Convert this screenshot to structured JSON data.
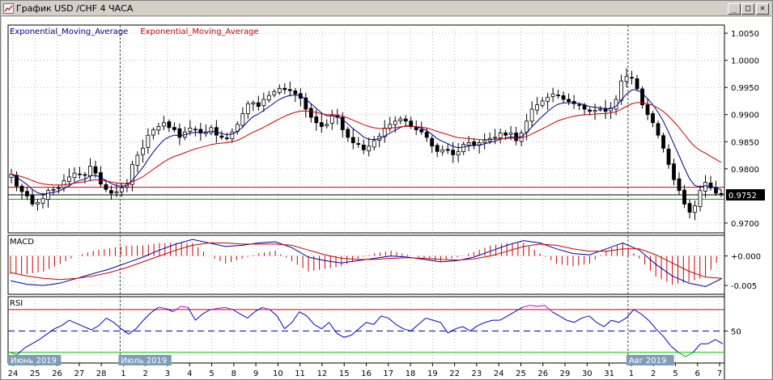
{
  "window": {
    "title": "График USD /CHF  4 ЧАСА",
    "minimize_glyph": "_",
    "maximize_glyph": "□",
    "close_glyph": "✕"
  },
  "colors": {
    "ema_fast": "#00008b",
    "ema_slow": "#cc0000",
    "support_line": "#00a000",
    "resistance_line": "#cc0000",
    "price_tag_bg": "#000000",
    "rsi_line": "#0000cc",
    "rsi_upper": "#cc0000",
    "rsi_lower": "#00cc00"
  },
  "chart_data": [
    {
      "type": "candlestick",
      "legend": [
        {
          "label": "Exponential_Moving_Average",
          "color": "#00008b"
        },
        {
          "label": "Exponential_Moving_Average",
          "color": "#cc0000"
        }
      ],
      "y_ticks": [
        "1.0050",
        "1.0000",
        "0.9950",
        "0.9900",
        "0.9850",
        "0.9800",
        "0.9700"
      ],
      "y_tick_values": [
        1.005,
        1.0,
        0.995,
        0.99,
        0.985,
        0.98,
        0.97
      ],
      "ylim": [
        0.9682,
        1.0065
      ],
      "current_price": "0.9752",
      "current_price_value": 0.9752,
      "horizontal_levels": [
        {
          "value": 0.9766,
          "color": "#cc0000"
        },
        {
          "value": 0.9752,
          "color": "#000000"
        },
        {
          "value": 0.9744,
          "color": "#00a000"
        }
      ],
      "close_path": [
        0.979,
        0.9768,
        0.9758,
        0.975,
        0.9735,
        0.9738,
        0.9745,
        0.976,
        0.9762,
        0.9765,
        0.9778,
        0.9785,
        0.9792,
        0.979,
        0.9788,
        0.9805,
        0.9792,
        0.9772,
        0.9762,
        0.9755,
        0.9758,
        0.9765,
        0.9772,
        0.9808,
        0.9825,
        0.9838,
        0.9862,
        0.9872,
        0.9878,
        0.9885,
        0.9876,
        0.9872,
        0.9858,
        0.9868,
        0.9875,
        0.9872,
        0.9866,
        0.9868,
        0.9876,
        0.9862,
        0.9858,
        0.9856,
        0.9868,
        0.9882,
        0.9902,
        0.992,
        0.9922,
        0.9915,
        0.9928,
        0.9935,
        0.9942,
        0.9948,
        0.9946,
        0.9944,
        0.9938,
        0.993,
        0.991,
        0.9895,
        0.9885,
        0.9878,
        0.9882,
        0.9898,
        0.9895,
        0.9872,
        0.9858,
        0.9848,
        0.9845,
        0.9835,
        0.9842,
        0.9852,
        0.986,
        0.9875,
        0.9882,
        0.9888,
        0.9892,
        0.9888,
        0.9878,
        0.9872,
        0.9868,
        0.9858,
        0.9842,
        0.9832,
        0.9835,
        0.9834,
        0.9826,
        0.9832,
        0.9845,
        0.9848,
        0.9844,
        0.9848,
        0.9852,
        0.9856,
        0.9858,
        0.9866,
        0.9862,
        0.9866,
        0.9852,
        0.9866,
        0.9888,
        0.991,
        0.9918,
        0.9925,
        0.9932,
        0.9938,
        0.9935,
        0.9928,
        0.9924,
        0.992,
        0.9918,
        0.991,
        0.9906,
        0.9908,
        0.991,
        0.9906,
        0.9912,
        0.9928,
        0.9962,
        0.997,
        0.9968,
        0.9948,
        0.9918,
        0.99,
        0.9885,
        0.9862,
        0.9838,
        0.9808,
        0.978,
        0.976,
        0.9735,
        0.972,
        0.9732,
        0.976,
        0.9775,
        0.9765,
        0.9755,
        0.9752
      ]
    },
    {
      "type": "line",
      "title": "MACD",
      "y_ticks": [
        "+0.000",
        "-0.005"
      ],
      "y_tick_values": [
        0.0,
        -0.005
      ],
      "ylim": [
        -0.0065,
        0.0035
      ],
      "macd": [
        -0.0042,
        -0.0048,
        -0.005,
        -0.0046,
        -0.0038,
        -0.003,
        -0.0022,
        -0.0012,
        -0.0002,
        0.001,
        0.002,
        0.0028,
        0.0022,
        0.0016,
        0.0018,
        0.0022,
        0.0024,
        0.0014,
        -0.0002,
        -0.0008,
        -0.0012,
        -0.0008,
        -0.0004,
        0.0,
        -0.0002,
        -0.0006,
        -0.001,
        -0.0008,
        -0.0002,
        0.0008,
        0.0018,
        0.0026,
        0.0022,
        0.0012,
        0.0004,
        0.0002,
        0.0012,
        0.0022,
        0.001,
        -0.0014,
        -0.0034,
        -0.0046,
        -0.0052,
        -0.0038
      ],
      "signal": [
        -0.0028,
        -0.0034,
        -0.0038,
        -0.004,
        -0.0038,
        -0.0034,
        -0.0028,
        -0.002,
        -0.001,
        0.0,
        0.001,
        0.0018,
        0.0022,
        0.0022,
        0.002,
        0.002,
        0.002,
        0.0018,
        0.001,
        0.0002,
        -0.0004,
        -0.0006,
        -0.0006,
        -0.0004,
        -0.0003,
        -0.0004,
        -0.0006,
        -0.0007,
        -0.0005,
        0.0,
        0.0008,
        0.0016,
        0.002,
        0.0018,
        0.0012,
        0.0008,
        0.0008,
        0.0012,
        0.0012,
        0.0002,
        -0.0012,
        -0.0026,
        -0.0036,
        -0.0038
      ]
    },
    {
      "type": "line",
      "title": "RSI",
      "y_ticks": [
        "50"
      ],
      "y_tick_values": [
        50
      ],
      "ylim": [
        20,
        82
      ],
      "levels": [
        70,
        50,
        30
      ],
      "values": [
        30,
        28,
        34,
        38,
        42,
        47,
        52,
        55,
        60,
        57,
        54,
        51,
        55,
        62,
        58,
        52,
        47,
        52,
        60,
        67,
        72,
        71,
        68,
        73,
        72,
        60,
        66,
        70,
        71,
        72,
        70,
        66,
        62,
        68,
        72,
        70,
        64,
        52,
        58,
        68,
        64,
        56,
        52,
        58,
        48,
        44,
        46,
        52,
        58,
        56,
        64,
        62,
        56,
        52,
        50,
        56,
        62,
        60,
        58,
        48,
        52,
        54,
        50,
        55,
        58,
        60,
        60,
        64,
        68,
        72,
        74,
        73,
        74,
        68,
        64,
        60,
        58,
        62,
        64,
        58,
        54,
        60,
        58,
        62,
        70,
        66,
        60,
        52,
        45,
        36,
        30,
        26,
        30,
        38,
        38,
        42,
        38
      ]
    }
  ],
  "x_axis": {
    "labels": [
      "24",
      "25",
      "26",
      "27",
      "28",
      "1",
      "2",
      "3",
      "4",
      "5",
      "8",
      "9",
      "10",
      "11",
      "12",
      "15",
      "16",
      "17",
      "18",
      "19",
      "22",
      "23",
      "24",
      "25",
      "26",
      "29",
      "30",
      "31",
      "1",
      "2",
      "5",
      "6",
      "7"
    ],
    "period_labels": [
      {
        "text": "Июнь 2019",
        "at_index": 0
      },
      {
        "text": "Июль 2019",
        "at_index": 5
      },
      {
        "text": "Авг 2019",
        "at_index": 28
      }
    ]
  }
}
